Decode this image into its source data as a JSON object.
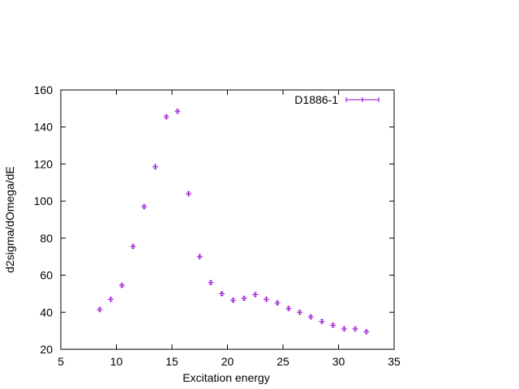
{
  "chart_data": {
    "type": "scatter",
    "title": "",
    "xlabel": "Excitation energy",
    "ylabel": "d2sigma/dOmega/dE",
    "xlim": [
      5,
      35
    ],
    "ylim": [
      20,
      160
    ],
    "xticks": [
      "5",
      "10",
      "15",
      "20",
      "25",
      "30",
      "35"
    ],
    "yticks": [
      "20",
      "40",
      "60",
      "80",
      "100",
      "120",
      "140",
      "160"
    ],
    "grid": false,
    "legend_position": "top-right",
    "series": [
      {
        "name": "D1886-1",
        "color": "#9400d3",
        "marker": "plus-with-errorbars",
        "x": [
          8.5,
          9.5,
          10.5,
          11.5,
          12.5,
          13.5,
          14.5,
          15.5,
          16.5,
          17.5,
          18.5,
          19.5,
          20.5,
          21.5,
          22.5,
          23.5,
          24.5,
          25.5,
          26.5,
          27.5,
          28.5,
          29.5,
          30.5,
          31.5,
          32.5
        ],
        "y": [
          41.5,
          47,
          54.5,
          75.5,
          97,
          118.5,
          145.5,
          148.5,
          104,
          70,
          56,
          50,
          46.5,
          47.5,
          49.5,
          47,
          45,
          42,
          40,
          37.5,
          35,
          33,
          31,
          31,
          29.5
        ]
      }
    ]
  }
}
